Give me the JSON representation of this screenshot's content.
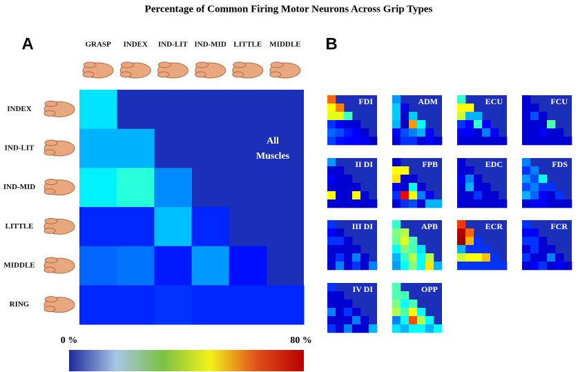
{
  "chart_data": {
    "type": "heatmap",
    "title": "Percentage of Common Firing Motor Neurons Across Grip Types",
    "panel_a": "A",
    "panel_b": "B",
    "annotation": [
      "All",
      "Muscles"
    ],
    "columns": [
      "GRASP",
      "INDEX",
      "IND-LIT",
      "IND-MID",
      "LITTLE",
      "MIDDLE"
    ],
    "rows": [
      "INDEX",
      "IND-LIT",
      "IND-MID",
      "LITTLE",
      "MIDDLE",
      "RING"
    ],
    "values": [
      [
        28
      ],
      [
        24,
        24
      ],
      [
        29,
        33,
        21
      ],
      [
        13,
        13,
        25,
        13
      ],
      [
        18,
        19,
        12,
        22,
        11
      ],
      [
        13,
        13,
        14,
        13,
        13,
        13
      ]
    ],
    "zlim": [
      0,
      80
    ],
    "zlim_labels": [
      "0 %",
      "80 %"
    ],
    "colorscale": [
      "#00008f",
      "#0000ff",
      "#00ffff",
      "#ffff00",
      "#ff0000",
      "#800000"
    ],
    "colorbar": [
      "#1e2a9a",
      "#a8c6e6",
      "#7cc143",
      "#f2f21a",
      "#e0501a",
      "#b80000"
    ],
    "background": "#1c2fb8",
    "muscles": [
      {
        "name": "FDI",
        "values": [
          [
            62
          ],
          [
            50,
            60
          ],
          [
            48,
            48,
            35
          ],
          [
            14,
            10,
            6,
            6
          ],
          [
            18,
            16,
            12,
            10,
            6
          ],
          [
            15,
            11,
            10,
            10,
            9,
            5
          ]
        ]
      },
      {
        "name": "ADM",
        "values": [
          [
            22
          ],
          [
            26,
            8
          ],
          [
            26,
            5,
            26
          ],
          [
            24,
            5,
            58,
            30
          ],
          [
            10,
            16,
            20,
            24,
            10
          ],
          [
            6,
            14,
            14,
            6,
            10,
            6
          ]
        ]
      },
      {
        "name": "ECU",
        "values": [
          [
            34
          ],
          [
            50,
            50
          ],
          [
            46,
            24,
            24
          ],
          [
            14,
            10,
            34,
            10
          ],
          [
            10,
            10,
            6,
            20,
            10
          ],
          [
            6,
            6,
            6,
            6,
            6,
            6
          ]
        ]
      },
      {
        "name": "FCU",
        "values": [
          [
            6
          ],
          [
            6,
            6
          ],
          [
            6,
            16,
            6
          ],
          [
            6,
            6,
            6,
            36
          ],
          [
            6,
            6,
            10,
            6,
            6
          ],
          [
            6,
            6,
            6,
            6,
            6,
            6
          ]
        ]
      },
      {
        "name": "II DI",
        "values": [
          [
            22
          ],
          [
            6,
            6
          ],
          [
            10,
            6,
            6
          ],
          [
            6,
            6,
            6,
            6
          ],
          [
            50,
            6,
            6,
            50,
            6
          ],
          [
            6,
            6,
            6,
            6,
            6,
            6
          ]
        ]
      },
      {
        "name": "FPB",
        "values": [
          [
            6
          ],
          [
            50,
            50
          ],
          [
            52,
            6,
            6
          ],
          [
            10,
            6,
            30,
            6
          ],
          [
            14,
            70,
            50,
            20,
            10
          ],
          [
            6,
            14,
            16,
            6,
            24,
            24
          ]
        ]
      },
      {
        "name": "EDC",
        "values": [
          [
            6
          ],
          [
            6,
            6
          ],
          [
            10,
            20,
            6
          ],
          [
            6,
            24,
            6,
            6
          ],
          [
            6,
            6,
            14,
            6,
            6
          ],
          [
            6,
            6,
            6,
            6,
            6,
            6
          ]
        ]
      },
      {
        "name": "FDS",
        "values": [
          [
            20
          ],
          [
            14,
            20
          ],
          [
            22,
            16,
            30
          ],
          [
            16,
            20,
            14,
            14
          ],
          [
            24,
            18,
            10,
            6,
            14
          ],
          [
            6,
            10,
            10,
            6,
            6,
            6
          ]
        ]
      },
      {
        "name": "III DI",
        "values": [
          [
            14
          ],
          [
            10,
            6
          ],
          [
            14,
            14,
            6
          ],
          [
            6,
            6,
            6,
            6
          ],
          [
            6,
            14,
            6,
            20,
            6
          ],
          [
            6,
            20,
            6,
            14,
            6,
            20
          ]
        ]
      },
      {
        "name": "APB",
        "values": [
          [
            34
          ],
          [
            40,
            44
          ],
          [
            38,
            48,
            36
          ],
          [
            30,
            40,
            36,
            28
          ],
          [
            24,
            34,
            44,
            30,
            44
          ],
          [
            22,
            30,
            40,
            30,
            52,
            24
          ]
        ]
      },
      {
        "name": "ECR",
        "values": [
          [
            66
          ],
          [
            76,
            62
          ],
          [
            78,
            56,
            14
          ],
          [
            24,
            14,
            14,
            14
          ],
          [
            46,
            50,
            50,
            55,
            14
          ],
          [
            14,
            14,
            14,
            14,
            14,
            14
          ]
        ]
      },
      {
        "name": "FCR",
        "values": [
          [
            14
          ],
          [
            10,
            10
          ],
          [
            14,
            14,
            6
          ],
          [
            6,
            14,
            6,
            6
          ],
          [
            14,
            6,
            6,
            20,
            6
          ],
          [
            6,
            10,
            14,
            6,
            10,
            6
          ]
        ]
      },
      {
        "name": "IV DI",
        "values": [
          [
            14
          ],
          [
            6,
            6
          ],
          [
            6,
            6,
            6
          ],
          [
            20,
            6,
            14,
            6
          ],
          [
            6,
            6,
            6,
            20,
            6
          ],
          [
            14,
            6,
            20,
            6,
            6,
            24
          ]
        ]
      },
      {
        "name": "OPP",
        "values": [
          [
            36
          ],
          [
            36,
            36
          ],
          [
            40,
            30,
            36
          ],
          [
            44,
            36,
            50,
            30
          ],
          [
            20,
            30,
            64,
            44,
            30
          ],
          [
            28,
            24,
            30,
            30,
            24,
            30
          ]
        ]
      }
    ]
  }
}
